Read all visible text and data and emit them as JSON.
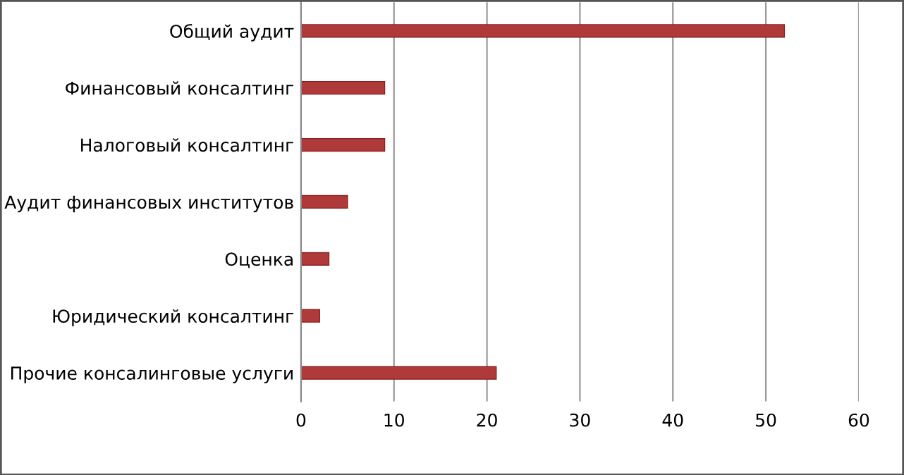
{
  "chart_data": {
    "type": "bar",
    "orientation": "horizontal",
    "categories": [
      "Общий аудит",
      "Финансовый консалтинг",
      "Налоговый консалтинг",
      "Аудит финансовых институтов",
      "Оценка",
      "Юридический консалтинг",
      "Прочие консалинговые услуги"
    ],
    "values": [
      52,
      9,
      9,
      5,
      3,
      2,
      21
    ],
    "color": "#b03a3a",
    "xlim": [
      0,
      60
    ],
    "xticks": [
      0,
      10,
      20,
      30,
      40,
      50,
      60
    ],
    "grid": "x"
  }
}
